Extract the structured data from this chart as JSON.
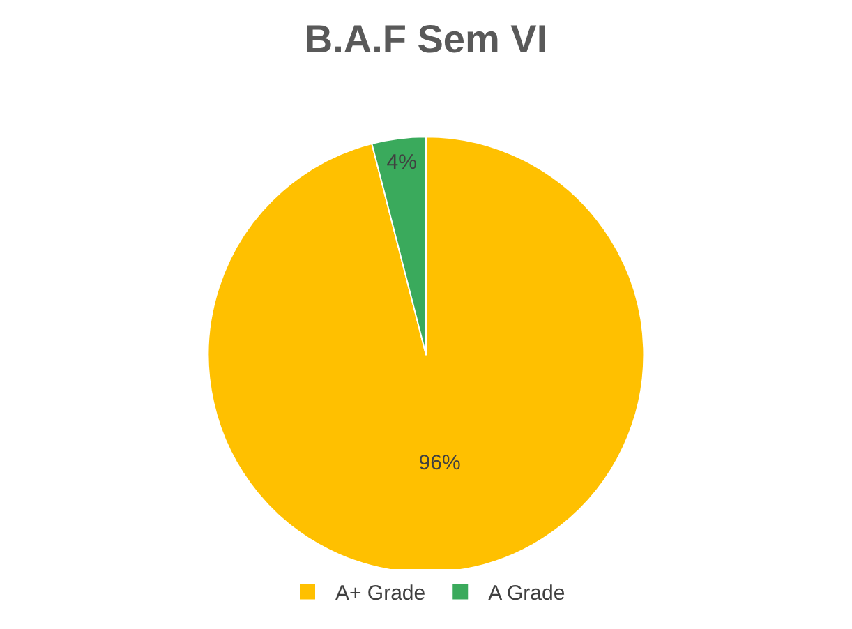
{
  "chart_data": {
    "type": "pie",
    "title": "B.A.F Sem VI",
    "categories": [
      "A+ Grade",
      "A Grade"
    ],
    "values": [
      96,
      4
    ],
    "colors": [
      "#ffc000",
      "#3aaa5c"
    ],
    "value_labels": [
      "96%",
      "4%"
    ],
    "legend": "bottom"
  }
}
